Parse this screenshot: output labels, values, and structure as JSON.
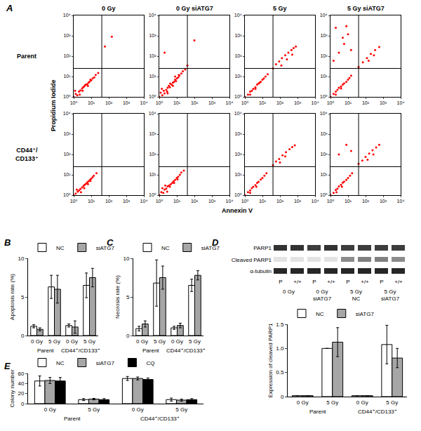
{
  "chart_data": [
    {
      "type": "scatter",
      "label": "A",
      "xlabel": "Annexin V",
      "ylabel": "Propidium Iodide",
      "log": true,
      "xlim": [
        1,
        10000
      ],
      "ylim": [
        1,
        10000
      ],
      "xticks": [
        {
          "value": 1,
          "label": "10⁰"
        },
        {
          "value": 10,
          "label": "10¹"
        },
        {
          "value": 100,
          "label": "10²"
        },
        {
          "value": 1000,
          "label": "10³"
        },
        {
          "value": 10000,
          "label": "10⁴"
        }
      ],
      "yticks": [
        {
          "value": 1,
          "label": "10⁰"
        },
        {
          "value": 10,
          "label": "10¹"
        },
        {
          "value": 100,
          "label": "10²"
        },
        {
          "value": 1000,
          "label": "10³"
        },
        {
          "value": 10000,
          "label": "10⁴"
        }
      ],
      "color": "#ff0000",
      "gates": {
        "x": 40,
        "y": 25
      },
      "columns": [
        "0 Gy",
        "0 Gy siATG7",
        "5 Gy",
        "5 Gy siATG7"
      ],
      "rows": [
        "Parent",
        "CD44⁺/CD133⁺"
      ],
      "panels": [
        [
          {
            "x": [
              1,
              1.3,
              1.6,
              2,
              2.4,
              3,
              3.5,
              4,
              5,
              6,
              7,
              8,
              10,
              12,
              15,
              18,
              1.2,
              2.2,
              3.2,
              4.5,
              6.5,
              9,
              25,
              60,
              150
            ],
            "y": [
              1,
              1.4,
              1.2,
              1.8,
              2.1,
              2.6,
              3,
              3.3,
              4,
              4.2,
              5,
              5.5,
              6.5,
              8,
              9,
              12,
              2,
              1.3,
              2,
              3.8,
              3.4,
              7,
              15,
              300,
              900
            ]
          },
          {
            "x": [
              1,
              1.2,
              1.5,
              1.8,
              2,
              2.5,
              3,
              3.5,
              4,
              5,
              6,
              7,
              8,
              10,
              12,
              14,
              18,
              22,
              1.4,
              2.8,
              4.2,
              6,
              9,
              13,
              30,
              40,
              3,
              8,
              2,
              100
            ],
            "y": [
              1,
              1.6,
              1.2,
              2,
              1.5,
              2.2,
              2.8,
              3.5,
              3,
              4,
              5,
              5.5,
              7,
              8,
              9,
              11,
              14,
              18,
              2.5,
              1.8,
              4.5,
              3.5,
              6,
              12,
              22,
              35,
              1.5,
              10,
              150,
              600
            ]
          },
          {
            "x": [
              1,
              1.5,
              2,
              2.5,
              3,
              4,
              5,
              6,
              8,
              10,
              12,
              15,
              20,
              2,
              4,
              7,
              40,
              60,
              90,
              130,
              200,
              300,
              450,
              600,
              800,
              120,
              250,
              500
            ],
            "y": [
              1,
              1.3,
              1.8,
              2,
              2.5,
              3,
              4,
              4.5,
              5.5,
              7,
              8,
              10,
              13,
              1.3,
              2.5,
              5,
              25,
              40,
              55,
              80,
              110,
              150,
              200,
              250,
              300,
              35,
              70,
              120
            ]
          },
          {
            "x": [
              1,
              1.5,
              2,
              2.5,
              3,
              4,
              5,
              6,
              8,
              10,
              12,
              15,
              2,
              4,
              40,
              70,
              120,
              200,
              350,
              600,
              150,
              300,
              1.5,
              3,
              6,
              10,
              2,
              5,
              15,
              8
            ],
            "y": [
              1,
              1.4,
              1.8,
              2.2,
              2.8,
              3.2,
              4,
              4.6,
              5.5,
              7,
              8.5,
              11,
              1.3,
              2.6,
              30,
              50,
              80,
              130,
              200,
              280,
              60,
              110,
              60,
              150,
              400,
              1200,
              2500,
              800,
              200,
              3000
            ]
          }
        ],
        [
          {
            "x": [
              1,
              1.3,
              1.7,
              2,
              2.4,
              3,
              3.6,
              4.2,
              5,
              6,
              7,
              8.5,
              10,
              12,
              14,
              1.5,
              2.6,
              4,
              6.5,
              9,
              20
            ],
            "y": [
              1,
              1.2,
              1.5,
              1.7,
              2,
              2.4,
              2.8,
              3.2,
              3.6,
              4.3,
              4.8,
              5.6,
              6.5,
              7.5,
              9,
              1.9,
              1.4,
              2.2,
              3.5,
              5,
              12
            ]
          },
          {
            "x": [
              1,
              1.3,
              1.7,
              2,
              2.5,
              3,
              3.6,
              4.5,
              5.5,
              6.5,
              8,
              10,
              12,
              15,
              18,
              1.5,
              2.8,
              4,
              7,
              11,
              25,
              2.2
            ],
            "y": [
              1,
              1.4,
              1.3,
              1.9,
              2.1,
              2.7,
              3,
              3.4,
              4,
              4.8,
              5.6,
              7,
              8,
              10,
              13,
              2.2,
              1.5,
              2.6,
              4,
              6,
              16,
              3
            ]
          },
          {
            "x": [
              1,
              1.5,
              2,
              2.5,
              3,
              4,
              5,
              6,
              8,
              10,
              13,
              17,
              2,
              4.5,
              40,
              60,
              90,
              140,
              220,
              350,
              500,
              700,
              100,
              200
            ],
            "y": [
              1,
              1.4,
              1.7,
              2.2,
              2.6,
              3.1,
              4,
              4.5,
              5.8,
              7,
              9,
              12,
              1.3,
              2.6,
              30,
              45,
              60,
              90,
              130,
              180,
              230,
              280,
              40,
              80
            ]
          },
          {
            "x": [
              1,
              1.5,
              2,
              2.5,
              3,
              4,
              5,
              6,
              8,
              10,
              13,
              17,
              2.2,
              4.5,
              40,
              65,
              100,
              160,
              250,
              400,
              600,
              130,
              280,
              3,
              8,
              15
            ],
            "y": [
              1,
              1.3,
              1.8,
              2.1,
              2.7,
              3.2,
              4.1,
              4.6,
              5.6,
              7,
              9,
              12,
              1.4,
              2.6,
              35,
              50,
              75,
              110,
              160,
              220,
              300,
              55,
              100,
              100,
              300,
              150
            ]
          }
        ]
      ]
    },
    {
      "type": "bar",
      "label": "B",
      "ylabel": "Apoptosis rate (%)",
      "categories": [
        "0 Gy",
        "5 Gy",
        "0 Gy",
        "5 Gy"
      ],
      "groups": [
        "Parent",
        "CD44⁺/CD133⁺"
      ],
      "ylim": [
        0,
        10
      ],
      "yticks": [
        0,
        5,
        10
      ],
      "legend": "top",
      "series": [
        {
          "name": "NC",
          "color": "#ffffff",
          "values": [
            1.2,
            6.3,
            1.3,
            6.5
          ],
          "errors": [
            0.2,
            1.5,
            0.2,
            1.6
          ]
        },
        {
          "name": "siATG7",
          "color": "#a6a6a6",
          "values": [
            0.8,
            6.0,
            1.1,
            7.5
          ],
          "errors": [
            0.2,
            1.8,
            0.8,
            1.2
          ]
        }
      ]
    },
    {
      "type": "bar",
      "label": "C",
      "ylabel": "Necrosis rate (%)",
      "categories": [
        "0 Gy",
        "5 Gy",
        "0 Gy",
        "5 Gy"
      ],
      "groups": [
        "Parent",
        "CD44⁺/CD133⁺"
      ],
      "ylim": [
        0,
        10
      ],
      "yticks": [
        0,
        5,
        10
      ],
      "legend": "top",
      "series": [
        {
          "name": "NC",
          "color": "#ffffff",
          "values": [
            0.9,
            6.8,
            1.0,
            6.5
          ],
          "errors": [
            0.3,
            3.0,
            0.2,
            0.8
          ]
        },
        {
          "name": "siATG7",
          "color": "#a6a6a6",
          "values": [
            1.5,
            7.5,
            1.3,
            7.8
          ],
          "errors": [
            0.4,
            1.5,
            0.3,
            0.6
          ]
        }
      ]
    },
    {
      "type": "heatmap",
      "label": "D",
      "rows": [
        "PARP1",
        "Cleaved PARP1",
        "α-tubulin"
      ],
      "lanes": [
        "P",
        "+/+",
        "P",
        "+/+",
        "P",
        "+/+",
        "P",
        "+/+"
      ],
      "groups": [
        "0 Gy",
        "0 Gy siATG7",
        "5 Gy NC",
        "5 Gy siATG7"
      ],
      "zlim": [
        0,
        1
      ],
      "cells": [
        [
          0.85,
          0.85,
          0.8,
          0.85,
          0.8,
          0.8,
          0.8,
          0.8
        ],
        [
          0.05,
          0.05,
          0.05,
          0.05,
          0.45,
          0.5,
          0.5,
          0.45
        ],
        [
          0.9,
          0.9,
          0.9,
          0.9,
          0.9,
          0.9,
          0.9,
          0.9
        ]
      ]
    },
    {
      "type": "bar",
      "ylabel": "Expression of cleaved PARP1",
      "categories": [
        "0 Gy",
        "5 Gy",
        "0 Gy",
        "5 Gy"
      ],
      "groups": [
        "Parent",
        "CD44⁺/CD133⁺"
      ],
      "ylim": [
        0,
        1.5
      ],
      "yticks": [
        0,
        0.5,
        {
          "value": 1,
          "label": "1.0"
        },
        1.5
      ],
      "legend": "top",
      "series": [
        {
          "name": "NC",
          "color": "#ffffff",
          "values": [
            0.02,
            1.0,
            0.02,
            1.08
          ],
          "errors": [
            0,
            0,
            0,
            0.4
          ]
        },
        {
          "name": "siATG7",
          "color": "#a6a6a6",
          "values": [
            0.02,
            1.13,
            0.02,
            0.8
          ],
          "errors": [
            0,
            0.3,
            0,
            0.2
          ]
        }
      ]
    },
    {
      "type": "bar",
      "label": "E",
      "ylabel": "Colony number",
      "categories": [
        "0 Gy",
        "5 Gy",
        "0 Gy",
        "5 Gy"
      ],
      "groups": [
        "Parent",
        "CD44⁺/CD133⁺"
      ],
      "ylim": [
        0,
        60
      ],
      "yticks": [
        0,
        20,
        40,
        60
      ],
      "legend": "top",
      "series": [
        {
          "name": "NC",
          "color": "#ffffff",
          "values": [
            45,
            8,
            50,
            8
          ],
          "errors": [
            10,
            2,
            4,
            3
          ]
        },
        {
          "name": "siATG7",
          "color": "#a6a6a6",
          "values": [
            46,
            9,
            50,
            7
          ],
          "errors": [
            6,
            1.5,
            3,
            2
          ]
        },
        {
          "name": "CQ",
          "color": "#000000",
          "values": [
            45,
            8,
            48,
            8
          ],
          "errors": [
            7,
            2,
            3,
            2
          ]
        }
      ]
    }
  ]
}
